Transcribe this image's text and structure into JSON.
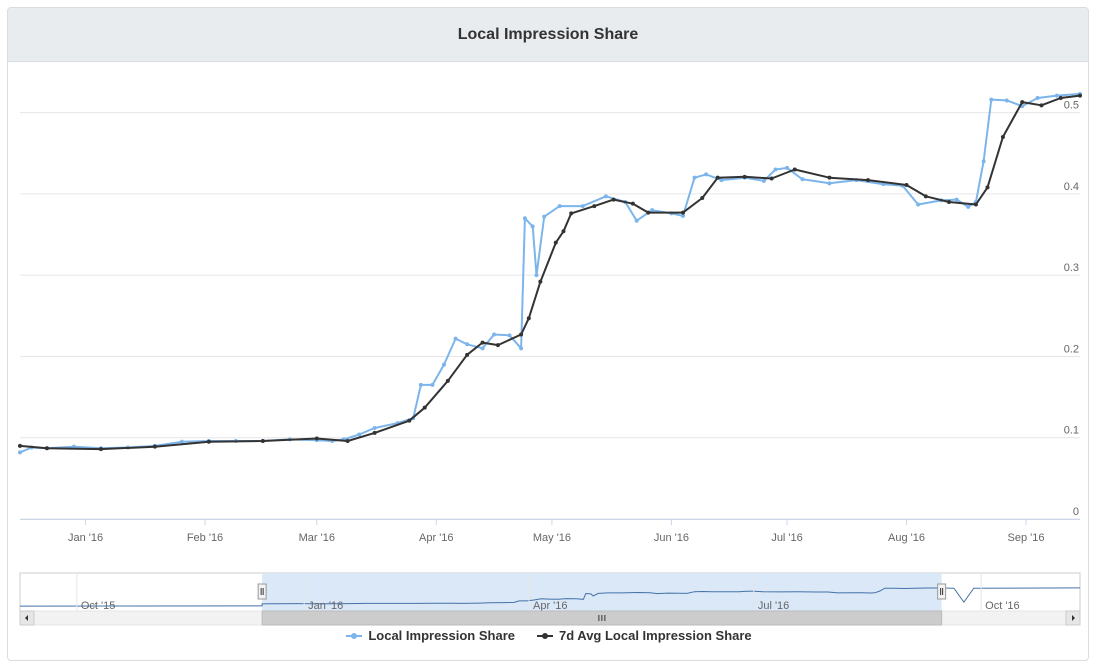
{
  "title": "Local Impression Share",
  "legend": {
    "series1": "Local Impression Share",
    "series2": "7d Avg Local Impression Share"
  },
  "colors": {
    "series1": "#7cb5ec",
    "series2": "#333333",
    "grid": "#e6e6e6",
    "navigator_fill": "#d6e5f7",
    "navigator_handle": "#f2f2f2"
  },
  "navigator": {
    "labels": [
      "Oct '15",
      "Jan '16",
      "Apr '16",
      "Jul '16",
      "Oct '16"
    ],
    "range_start": "2015-12-15",
    "range_end": "2016-09-15"
  },
  "chart_data": {
    "type": "line",
    "title": "Local Impression Share",
    "x_type": "datetime",
    "xlim": [
      "2015-12-15",
      "2016-09-15"
    ],
    "ylim": [
      0,
      0.55
    ],
    "yticks": [
      0,
      0.1,
      0.2,
      0.3,
      0.4,
      0.5
    ],
    "ytick_labels": [
      "0",
      "0.1",
      "0.2",
      "0.3",
      "0.4",
      "0.5"
    ],
    "xticks": [
      "2016-01-01",
      "2016-02-01",
      "2016-03-01",
      "2016-04-01",
      "2016-05-01",
      "2016-06-01",
      "2016-07-01",
      "2016-08-01",
      "2016-09-01"
    ],
    "xtick_labels": [
      "Jan '16",
      "Feb '16",
      "Mar '16",
      "Apr '16",
      "May '16",
      "Jun '16",
      "Jul '16",
      "Aug '16",
      "Sep '16"
    ],
    "grid": true,
    "legend_position": "bottom-center",
    "series": [
      {
        "name": "Local Impression Share",
        "color": "#7cb5ec",
        "points": [
          [
            "2015-12-15",
            0.082
          ],
          [
            "2015-12-18",
            0.088
          ],
          [
            "2015-12-22",
            0.087
          ],
          [
            "2015-12-29",
            0.089
          ],
          [
            "2016-01-05",
            0.087
          ],
          [
            "2016-01-12",
            0.088
          ],
          [
            "2016-01-19",
            0.09
          ],
          [
            "2016-01-26",
            0.095
          ],
          [
            "2016-02-02",
            0.096
          ],
          [
            "2016-02-09",
            0.096
          ],
          [
            "2016-02-16",
            0.096
          ],
          [
            "2016-02-23",
            0.098
          ],
          [
            "2016-03-01",
            0.097
          ],
          [
            "2016-03-05",
            0.096
          ],
          [
            "2016-03-08",
            0.098
          ],
          [
            "2016-03-12",
            0.104
          ],
          [
            "2016-03-16",
            0.112
          ],
          [
            "2016-03-22",
            0.118
          ],
          [
            "2016-03-26",
            0.124
          ],
          [
            "2016-03-28",
            0.165
          ],
          [
            "2016-03-31",
            0.165
          ],
          [
            "2016-04-03",
            0.19
          ],
          [
            "2016-04-06",
            0.222
          ],
          [
            "2016-04-09",
            0.215
          ],
          [
            "2016-04-13",
            0.21
          ],
          [
            "2016-04-16",
            0.227
          ],
          [
            "2016-04-20",
            0.226
          ],
          [
            "2016-04-23",
            0.21
          ],
          [
            "2016-04-24",
            0.37
          ],
          [
            "2016-04-26",
            0.36
          ],
          [
            "2016-04-27",
            0.3
          ],
          [
            "2016-04-29",
            0.372
          ],
          [
            "2016-05-03",
            0.385
          ],
          [
            "2016-05-09",
            0.385
          ],
          [
            "2016-05-15",
            0.397
          ],
          [
            "2016-05-20",
            0.39
          ],
          [
            "2016-05-23",
            0.367
          ],
          [
            "2016-05-27",
            0.38
          ],
          [
            "2016-06-01",
            0.376
          ],
          [
            "2016-06-04",
            0.373
          ],
          [
            "2016-06-07",
            0.42
          ],
          [
            "2016-06-10",
            0.424
          ],
          [
            "2016-06-14",
            0.417
          ],
          [
            "2016-06-20",
            0.42
          ],
          [
            "2016-06-25",
            0.416
          ],
          [
            "2016-06-28",
            0.43
          ],
          [
            "2016-07-01",
            0.432
          ],
          [
            "2016-07-05",
            0.418
          ],
          [
            "2016-07-12",
            0.413
          ],
          [
            "2016-07-19",
            0.417
          ],
          [
            "2016-07-26",
            0.412
          ],
          [
            "2016-07-31",
            0.41
          ],
          [
            "2016-08-04",
            0.387
          ],
          [
            "2016-08-10",
            0.392
          ],
          [
            "2016-08-14",
            0.393
          ],
          [
            "2016-08-17",
            0.384
          ],
          [
            "2016-08-19",
            0.39
          ],
          [
            "2016-08-21",
            0.44
          ],
          [
            "2016-08-23",
            0.516
          ],
          [
            "2016-08-27",
            0.515
          ],
          [
            "2016-08-31",
            0.508
          ],
          [
            "2016-09-04",
            0.518
          ],
          [
            "2016-09-09",
            0.521
          ],
          [
            "2016-09-15",
            0.523
          ]
        ]
      },
      {
        "name": "7d Avg Local Impression Share",
        "color": "#333333",
        "points": [
          [
            "2015-12-15",
            0.09
          ],
          [
            "2015-12-22",
            0.087
          ],
          [
            "2016-01-05",
            0.086
          ],
          [
            "2016-01-19",
            0.089
          ],
          [
            "2016-02-02",
            0.095
          ],
          [
            "2016-02-16",
            0.096
          ],
          [
            "2016-03-01",
            0.099
          ],
          [
            "2016-03-09",
            0.096
          ],
          [
            "2016-03-16",
            0.106
          ],
          [
            "2016-03-25",
            0.121
          ],
          [
            "2016-03-29",
            0.137
          ],
          [
            "2016-04-04",
            0.17
          ],
          [
            "2016-04-09",
            0.202
          ],
          [
            "2016-04-13",
            0.217
          ],
          [
            "2016-04-17",
            0.214
          ],
          [
            "2016-04-23",
            0.227
          ],
          [
            "2016-04-25",
            0.247
          ],
          [
            "2016-04-28",
            0.292
          ],
          [
            "2016-05-02",
            0.34
          ],
          [
            "2016-05-04",
            0.354
          ],
          [
            "2016-05-06",
            0.376
          ],
          [
            "2016-05-12",
            0.385
          ],
          [
            "2016-05-17",
            0.393
          ],
          [
            "2016-05-22",
            0.388
          ],
          [
            "2016-05-26",
            0.377
          ],
          [
            "2016-06-04",
            0.377
          ],
          [
            "2016-06-09",
            0.395
          ],
          [
            "2016-06-13",
            0.42
          ],
          [
            "2016-06-20",
            0.421
          ],
          [
            "2016-06-27",
            0.419
          ],
          [
            "2016-07-03",
            0.43
          ],
          [
            "2016-07-12",
            0.42
          ],
          [
            "2016-07-22",
            0.417
          ],
          [
            "2016-08-01",
            0.411
          ],
          [
            "2016-08-06",
            0.397
          ],
          [
            "2016-08-12",
            0.39
          ],
          [
            "2016-08-19",
            0.387
          ],
          [
            "2016-08-22",
            0.408
          ],
          [
            "2016-08-26",
            0.47
          ],
          [
            "2016-08-31",
            0.513
          ],
          [
            "2016-09-05",
            0.509
          ],
          [
            "2016-09-10",
            0.518
          ],
          [
            "2016-09-15",
            0.521
          ]
        ]
      }
    ]
  }
}
